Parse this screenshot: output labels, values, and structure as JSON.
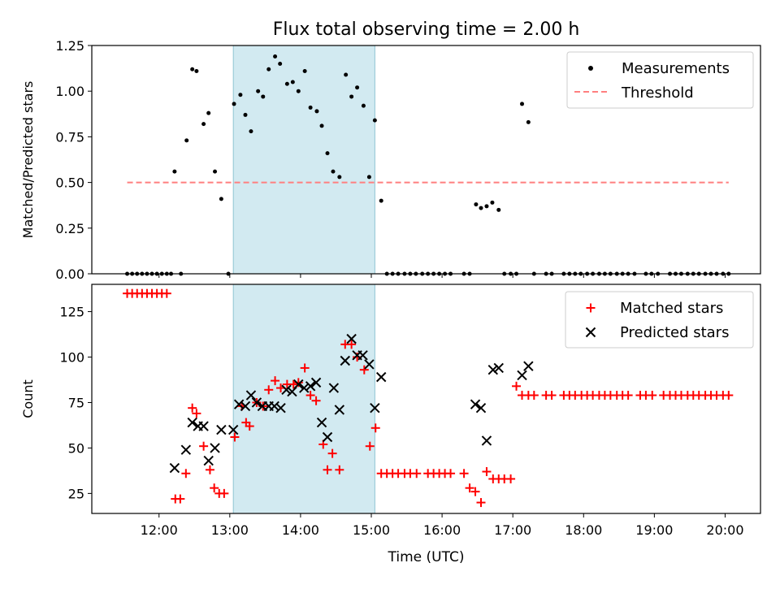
{
  "chart_data": {
    "type": "scatter",
    "title": "Flux total observing time = 2.00 h",
    "xlabel": "Time (UTC)",
    "x_unit": "hour of day (UTC)",
    "xlim": [
      11.05,
      20.5
    ],
    "xticks": [
      {
        "value": 12,
        "label": "12:00"
      },
      {
        "value": 13,
        "label": "13:00"
      },
      {
        "value": 14,
        "label": "14:00"
      },
      {
        "value": 15,
        "label": "15:00"
      },
      {
        "value": 16,
        "label": "16:00"
      },
      {
        "value": 17,
        "label": "17:00"
      },
      {
        "value": 18,
        "label": "18:00"
      },
      {
        "value": 19,
        "label": "19:00"
      },
      {
        "value": 20,
        "label": "20:00"
      }
    ],
    "shaded_span": {
      "x_start": 13.05,
      "x_end": 15.05,
      "color": "#add8e6"
    },
    "panels": [
      {
        "id": "top",
        "ylabel": "Matched/Predicted stars",
        "ylim": [
          0,
          1.25
        ],
        "yticks": [
          "0.00",
          "0.25",
          "0.50",
          "0.75",
          "1.00",
          "1.25"
        ],
        "legend_position": "upper right",
        "series": [
          {
            "name": "Measurements",
            "marker": "dot",
            "color": "#000000",
            "x": [
              11.55,
              11.62,
              11.69,
              11.76,
              11.83,
              11.9,
              11.97,
              12.04,
              12.11,
              12.17,
              12.22,
              12.31,
              12.39,
              12.47,
              12.53,
              12.63,
              12.7,
              12.79,
              12.88,
              12.98,
              13.06,
              13.15,
              13.22,
              13.3,
              13.4,
              13.47,
              13.55,
              13.64,
              13.71,
              13.81,
              13.89,
              13.97,
              14.06,
              14.14,
              14.23,
              14.3,
              14.38,
              14.46,
              14.55,
              14.64,
              14.72,
              14.8,
              14.89,
              14.97,
              15.05,
              15.14,
              15.22,
              15.3,
              15.38,
              15.47,
              15.55,
              15.63,
              15.72,
              15.8,
              15.88,
              15.96,
              16.04,
              16.12,
              16.31,
              16.39,
              16.48,
              16.55,
              16.63,
              16.71,
              16.8,
              16.88,
              16.97,
              17.05,
              17.13,
              17.22,
              17.3,
              17.47,
              17.55,
              17.72,
              17.8,
              17.88,
              17.96,
              18.05,
              18.13,
              18.22,
              18.3,
              18.38,
              18.47,
              18.55,
              18.63,
              18.72,
              18.88,
              18.96,
              19.05,
              19.22,
              19.3,
              19.38,
              19.47,
              19.55,
              19.63,
              19.72,
              19.8,
              19.88,
              19.97,
              20.05
            ],
            "y": [
              0,
              0,
              0,
              0,
              0,
              0,
              0,
              0,
              0,
              0,
              0.56,
              0,
              0.73,
              1.12,
              1.11,
              0.82,
              0.88,
              0.56,
              0.41,
              0,
              0.93,
              0.98,
              0.87,
              0.78,
              1.0,
              0.97,
              1.12,
              1.19,
              1.15,
              1.04,
              1.05,
              1.0,
              1.11,
              0.91,
              0.89,
              0.81,
              0.66,
              0.56,
              0.53,
              1.09,
              0.97,
              1.02,
              0.92,
              0.53,
              0.84,
              0.4,
              0,
              0,
              0,
              0,
              0,
              0,
              0,
              0,
              0,
              0,
              0,
              0,
              0,
              0,
              0.38,
              0.36,
              0.37,
              0.39,
              0.35,
              0,
              0,
              0,
              0.93,
              0.83,
              0,
              0,
              0,
              0,
              0,
              0,
              0,
              0,
              0,
              0,
              0,
              0,
              0,
              0,
              0,
              0,
              0,
              0,
              0,
              0,
              0,
              0,
              0,
              0,
              0,
              0,
              0,
              0,
              0,
              0
            ]
          },
          {
            "name": "Threshold",
            "marker": "dashed-line",
            "color": "#ff7f7f",
            "x": [
              11.55,
              20.05
            ],
            "y": [
              0.5,
              0.5
            ]
          }
        ]
      },
      {
        "id": "bottom",
        "ylabel": "Count",
        "ylim": [
          14,
          140
        ],
        "yticks": [
          "25",
          "50",
          "75",
          "100",
          "125"
        ],
        "legend_position": "upper right",
        "series": [
          {
            "name": "Matched stars",
            "marker": "plus",
            "color": "#ff0000",
            "x": [
              11.55,
              11.62,
              11.69,
              11.76,
              11.83,
              11.9,
              11.97,
              12.04,
              12.11,
              12.23,
              12.3,
              12.38,
              12.47,
              12.53,
              12.63,
              12.72,
              12.78,
              12.85,
              12.92,
              13.07,
              13.17,
              13.23,
              13.28,
              13.38,
              13.47,
              13.55,
              13.64,
              13.72,
              13.81,
              13.9,
              13.97,
              14.06,
              14.14,
              14.22,
              14.32,
              14.38,
              14.45,
              14.55,
              14.63,
              14.72,
              14.8,
              14.9,
              14.98,
              15.06,
              15.14,
              15.22,
              15.3,
              15.38,
              15.47,
              15.55,
              15.64,
              15.8,
              15.88,
              15.96,
              16.04,
              16.12,
              16.31,
              16.39,
              16.47,
              16.55,
              16.63,
              16.72,
              16.8,
              16.88,
              16.97,
              17.05,
              17.13,
              17.22,
              17.3,
              17.47,
              17.55,
              17.72,
              17.8,
              17.88,
              17.97,
              18.05,
              18.13,
              18.22,
              18.3,
              18.38,
              18.47,
              18.55,
              18.63,
              18.8,
              18.88,
              18.97,
              19.13,
              19.22,
              19.3,
              19.38,
              19.47,
              19.55,
              19.63,
              19.72,
              19.8,
              19.88,
              19.97,
              20.05
            ],
            "y": [
              135,
              135,
              135,
              135,
              135,
              135,
              135,
              135,
              135,
              22,
              22,
              36,
              72,
              69,
              51,
              38,
              28,
              25,
              25,
              56,
              73,
              64,
              62,
              75,
              73,
              82,
              87,
              83,
              85,
              85,
              86,
              94,
              79,
              76,
              52,
              38,
              47,
              38,
              107,
              107,
              100,
              93,
              51,
              61,
              36,
              36,
              36,
              36,
              36,
              36,
              36,
              36,
              36,
              36,
              36,
              36,
              36,
              28,
              26,
              20,
              37,
              33,
              33,
              33,
              33,
              84,
              79,
              79,
              79,
              79,
              79,
              79,
              79,
              79,
              79,
              79,
              79,
              79,
              79,
              79,
              79,
              79,
              79,
              79,
              79,
              79,
              79,
              79,
              79,
              79,
              79,
              79,
              79,
              79,
              79,
              79,
              79,
              79
            ]
          },
          {
            "name": "Predicted stars",
            "marker": "x",
            "color": "#000000",
            "x": [
              12.22,
              12.38,
              12.47,
              12.55,
              12.63,
              12.7,
              12.79,
              12.88,
              13.05,
              13.13,
              13.22,
              13.3,
              13.38,
              13.46,
              13.55,
              13.63,
              13.72,
              13.8,
              13.88,
              13.97,
              14.05,
              14.14,
              14.22,
              14.3,
              14.38,
              14.47,
              14.55,
              14.63,
              14.72,
              14.8,
              14.88,
              14.97,
              15.05,
              15.14,
              16.47,
              16.55,
              16.63,
              16.72,
              16.8,
              17.13,
              17.22
            ],
            "y": [
              39,
              49,
              64,
              62,
              62,
              43,
              50,
              60,
              60,
              74,
              73,
              79,
              75,
              73,
              73,
              73,
              72,
              82,
              81,
              85,
              83,
              84,
              86,
              64,
              56,
              83,
              71,
              98,
              110,
              101,
              101,
              96,
              72,
              89,
              74,
              72,
              54,
              93,
              94,
              90,
              95
            ]
          }
        ]
      }
    ]
  }
}
